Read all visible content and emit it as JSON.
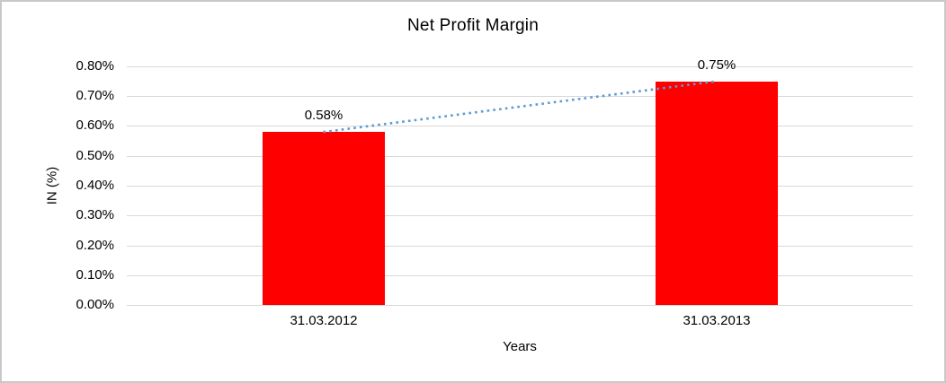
{
  "chart_data": {
    "type": "bar",
    "title": "Net Profit Margin",
    "xlabel": "Years",
    "ylabel": "IN (%)",
    "categories": [
      "31.03.2012",
      "31.03.2013"
    ],
    "values": [
      0.58,
      0.75
    ],
    "data_labels": [
      "0.58%",
      "0.75%"
    ],
    "ylim": [
      0,
      0.8
    ],
    "ytick_step": 0.1,
    "ytick_labels": [
      "0.00%",
      "0.10%",
      "0.20%",
      "0.30%",
      "0.40%",
      "0.50%",
      "0.60%",
      "0.70%",
      "0.80%"
    ],
    "grid": true,
    "legend_position": "none",
    "bar_color": "#ff0000",
    "gridline_color": "#d9d9d9",
    "trendline": {
      "present": true,
      "style": "dotted",
      "color": "#5b9bd5",
      "connects": "bar tops",
      "from_value": 0.58,
      "to_value": 0.75
    }
  }
}
